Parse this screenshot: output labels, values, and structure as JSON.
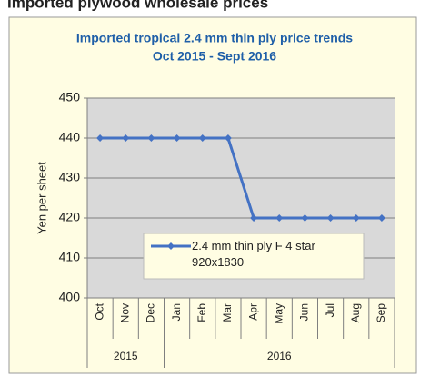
{
  "header": {
    "title": "Imported plywood wholesale prices"
  },
  "chart_data": {
    "type": "line",
    "title": "Imported tropical 2.4 mm thin ply price trends",
    "subtitle": "Oct 2015 - Sept 2016",
    "y_label": "Yen per sheet",
    "categories": [
      "Oct",
      "Nov",
      "Dec",
      "Jan",
      "Feb",
      "Mar",
      "Apr",
      "May",
      "Jun",
      "Jul",
      "Aug",
      "Sep"
    ],
    "groups": [
      {
        "name": "2015",
        "count": 3
      },
      {
        "name": "2016",
        "count": 9
      }
    ],
    "series": [
      {
        "name": "2.4 mm thin ply F 4 star 920x1830",
        "color": "#4472c4",
        "values": [
          440,
          440,
          440,
          440,
          440,
          440,
          420,
          420,
          420,
          420,
          420,
          420
        ]
      }
    ],
    "ylim": [
      400,
      450
    ],
    "yticks": [
      400,
      410,
      420,
      430,
      440,
      450
    ],
    "grid": true
  }
}
